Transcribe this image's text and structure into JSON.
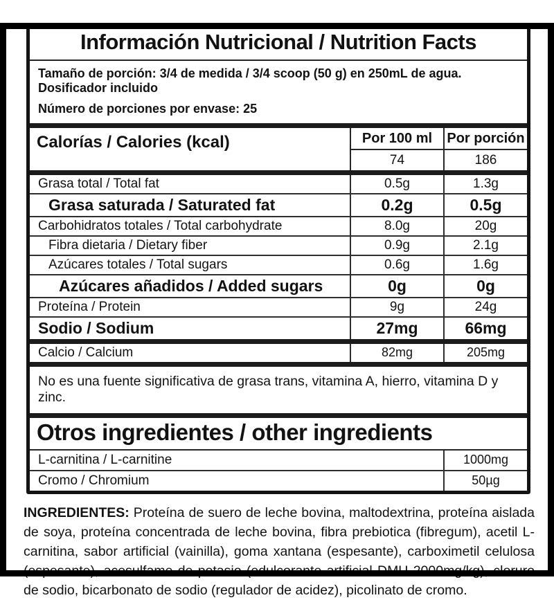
{
  "header": {
    "title": "Información Nutricional / Nutrition Facts"
  },
  "serving": {
    "line1": "Tamaño de porción: 3/4 de medida / 3/4 scoop (50 g) en 250mL de agua.",
    "line2": "Dosificador incluido",
    "line3": "Número de porciones por envase: 25"
  },
  "table": {
    "header": {
      "calories_label": "Calorías / Calories (kcal)",
      "col_per_100ml": "Por 100 ml",
      "col_per_serving": "Por porción"
    },
    "calories": {
      "per_100ml": "74",
      "per_serving": "186"
    },
    "rows": [
      {
        "label": "Grasa total / Total fat",
        "per_100ml": "0.5g",
        "per_serving": "1.3g",
        "emphasis": false,
        "indent": 0
      },
      {
        "label": "Grasa saturada / Saturated fat",
        "per_100ml": "0.2g",
        "per_serving": "0.5g",
        "emphasis": true,
        "indent": 1
      },
      {
        "label": "Carbohidratos totales / Total carbohydrate",
        "per_100ml": "8.0g",
        "per_serving": "20g",
        "emphasis": false,
        "indent": 0
      },
      {
        "label": "Fibra dietaria / Dietary fiber",
        "per_100ml": "0.9g",
        "per_serving": "2.1g",
        "emphasis": false,
        "indent": 1
      },
      {
        "label": "Azúcares totales / Total sugars",
        "per_100ml": "0.6g",
        "per_serving": "1.6g",
        "emphasis": false,
        "indent": 1
      },
      {
        "label": "Azúcares añadidos / Added sugars",
        "per_100ml": "0g",
        "per_serving": "0g",
        "emphasis": true,
        "indent": 2
      },
      {
        "label": "Proteína / Protein",
        "per_100ml": "9g",
        "per_serving": "24g",
        "emphasis": false,
        "indent": 0
      },
      {
        "label": "Sodio / Sodium",
        "per_100ml": "27mg",
        "per_serving": "66mg",
        "emphasis": true,
        "indent": 0
      }
    ],
    "minerals": [
      {
        "label": "Calcio / Calcium",
        "per_100ml": "82mg",
        "per_serving": "205mg",
        "emphasis": false,
        "indent": 0
      }
    ]
  },
  "note": {
    "text": "No es una fuente significativa de grasa trans, vitamina A, hierro, vitamina D y zinc."
  },
  "other_ingredients": {
    "title": "Otros ingredientes / other ingredients",
    "rows": [
      {
        "label": "L-carnitina / L-carnitine",
        "amount": "1000mg"
      },
      {
        "label": "Cromo / Chromium",
        "amount": "50µg"
      }
    ]
  },
  "ingredients": {
    "label": "INGREDIENTES:",
    "text": "Proteína de suero de leche bovina, maltodextrina, proteína aislada de soya, proteína concentrada de leche bovina, fibra prebiotica (fibregum), acetil L-carnitina, sabor artificial (vainilla), goma xantana (espesante), carboximetil celulosa (espesante), acesulfame de potasio (edulcorante artificial DMU 2000mg/kg), cloruro de sodio, bicarbonato de sodio (regulador de acidez), picolinato de cromo."
  },
  "colors": {
    "text": "#121212",
    "section_bar": "#1b1b1b",
    "background": "#ffffff"
  }
}
